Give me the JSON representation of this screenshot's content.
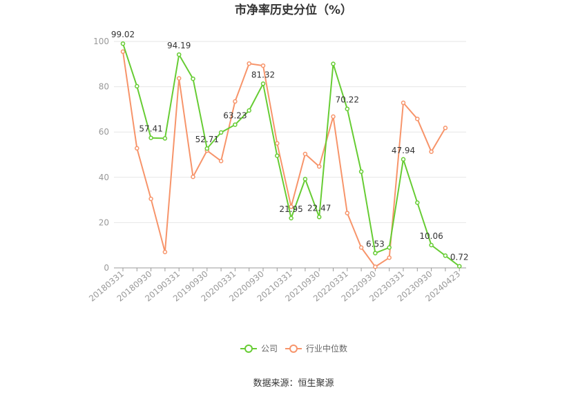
{
  "chart_data": {
    "type": "line",
    "title": "市净率历史分位（%）",
    "source": "数据来源：恒生聚源",
    "ylim": [
      0,
      100
    ],
    "yticks": [
      0,
      20,
      40,
      60,
      80,
      100
    ],
    "x_tick_labels": [
      "20180331",
      "20180930",
      "20190331",
      "20190930",
      "20200331",
      "20200930",
      "20210331",
      "20210930",
      "20220331",
      "20220930",
      "20230331",
      "20230930",
      "20240423"
    ],
    "grid": true,
    "legend_position": "bottom",
    "colors": {
      "company": "#66cc33",
      "industry": "#f7946a"
    },
    "series": [
      {
        "name": "公司",
        "values": [
          99.02,
          80.2,
          57.41,
          57.2,
          94.19,
          83.5,
          52.71,
          59.8,
          63.23,
          69.5,
          81.32,
          49.5,
          21.95,
          39.2,
          22.47,
          90.1,
          70.22,
          42.5,
          6.53,
          9.0,
          47.94,
          28.8,
          10.06,
          5.4,
          0.72
        ],
        "labels": {
          "0": "99.02",
          "2": "57.41",
          "4": "94.19",
          "6": "52.71",
          "8": "63.23",
          "10": "81.32",
          "12": "21.95",
          "14": "22.47",
          "16": "70.22",
          "18": "6.53",
          "20": "47.94",
          "22": "10.06",
          "24": "0.72"
        }
      },
      {
        "name": "行业中位数",
        "values": [
          95.5,
          52.8,
          30.5,
          7.0,
          83.7,
          40.2,
          51.8,
          47.2,
          73.5,
          90.2,
          89.3,
          55.0,
          27.0,
          50.3,
          44.8,
          66.8,
          24.2,
          9.0,
          0.5,
          4.5,
          72.9,
          65.8,
          51.3,
          61.8,
          null
        ]
      }
    ]
  }
}
